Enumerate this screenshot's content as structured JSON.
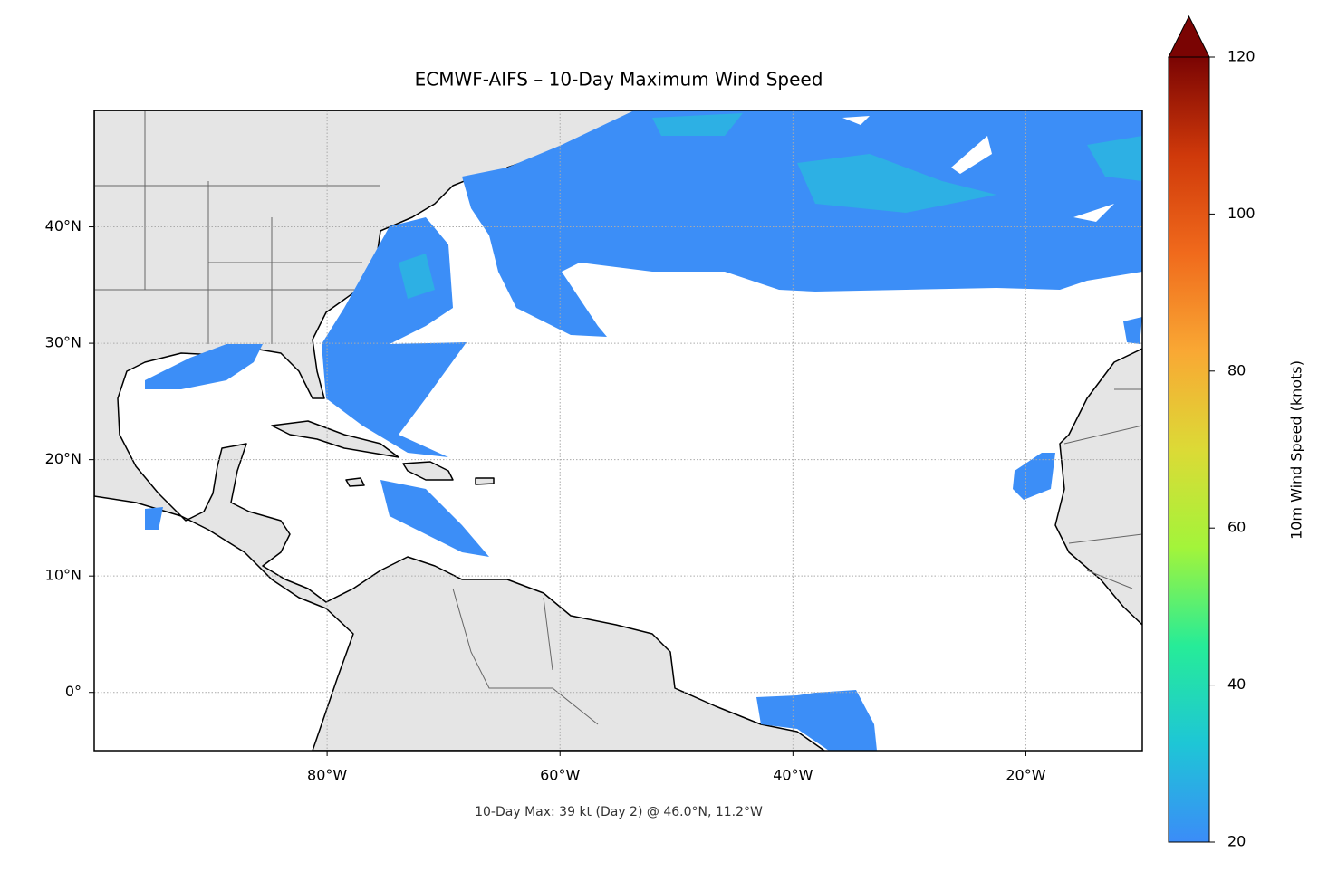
{
  "chart_data": {
    "type": "map",
    "title": "ECMWF-AIFS – 10-Day Maximum Wind Speed",
    "annotation": "10-Day Max: 39 kt (Day 2) @ 46.0°N, 11.2°W",
    "xlim": [
      -100,
      -10
    ],
    "ylim": [
      -5,
      50
    ],
    "xticks": [
      {
        "value": -80,
        "label": "80°W"
      },
      {
        "value": -60,
        "label": "60°W"
      },
      {
        "value": -40,
        "label": "40°W"
      },
      {
        "value": -20,
        "label": "20°W"
      }
    ],
    "yticks": [
      {
        "value": 0,
        "label": "0°"
      },
      {
        "value": 10,
        "label": "10°N"
      },
      {
        "value": 20,
        "label": "20°N"
      },
      {
        "value": 30,
        "label": "30°N"
      },
      {
        "value": 40,
        "label": "40°N"
      }
    ],
    "grid": true,
    "colorbar": {
      "label": "10m Wind Speed (knots)",
      "lim": [
        20,
        120
      ],
      "ticks": [
        20,
        40,
        60,
        80,
        100,
        120
      ],
      "extend": "max",
      "colors": [
        "#3b8cf8",
        "#1ec6d6",
        "#26ec98",
        "#a3f43a",
        "#dcda36",
        "#f9a834",
        "#f06a1c",
        "#cf390a",
        "#7a0403"
      ]
    }
  }
}
